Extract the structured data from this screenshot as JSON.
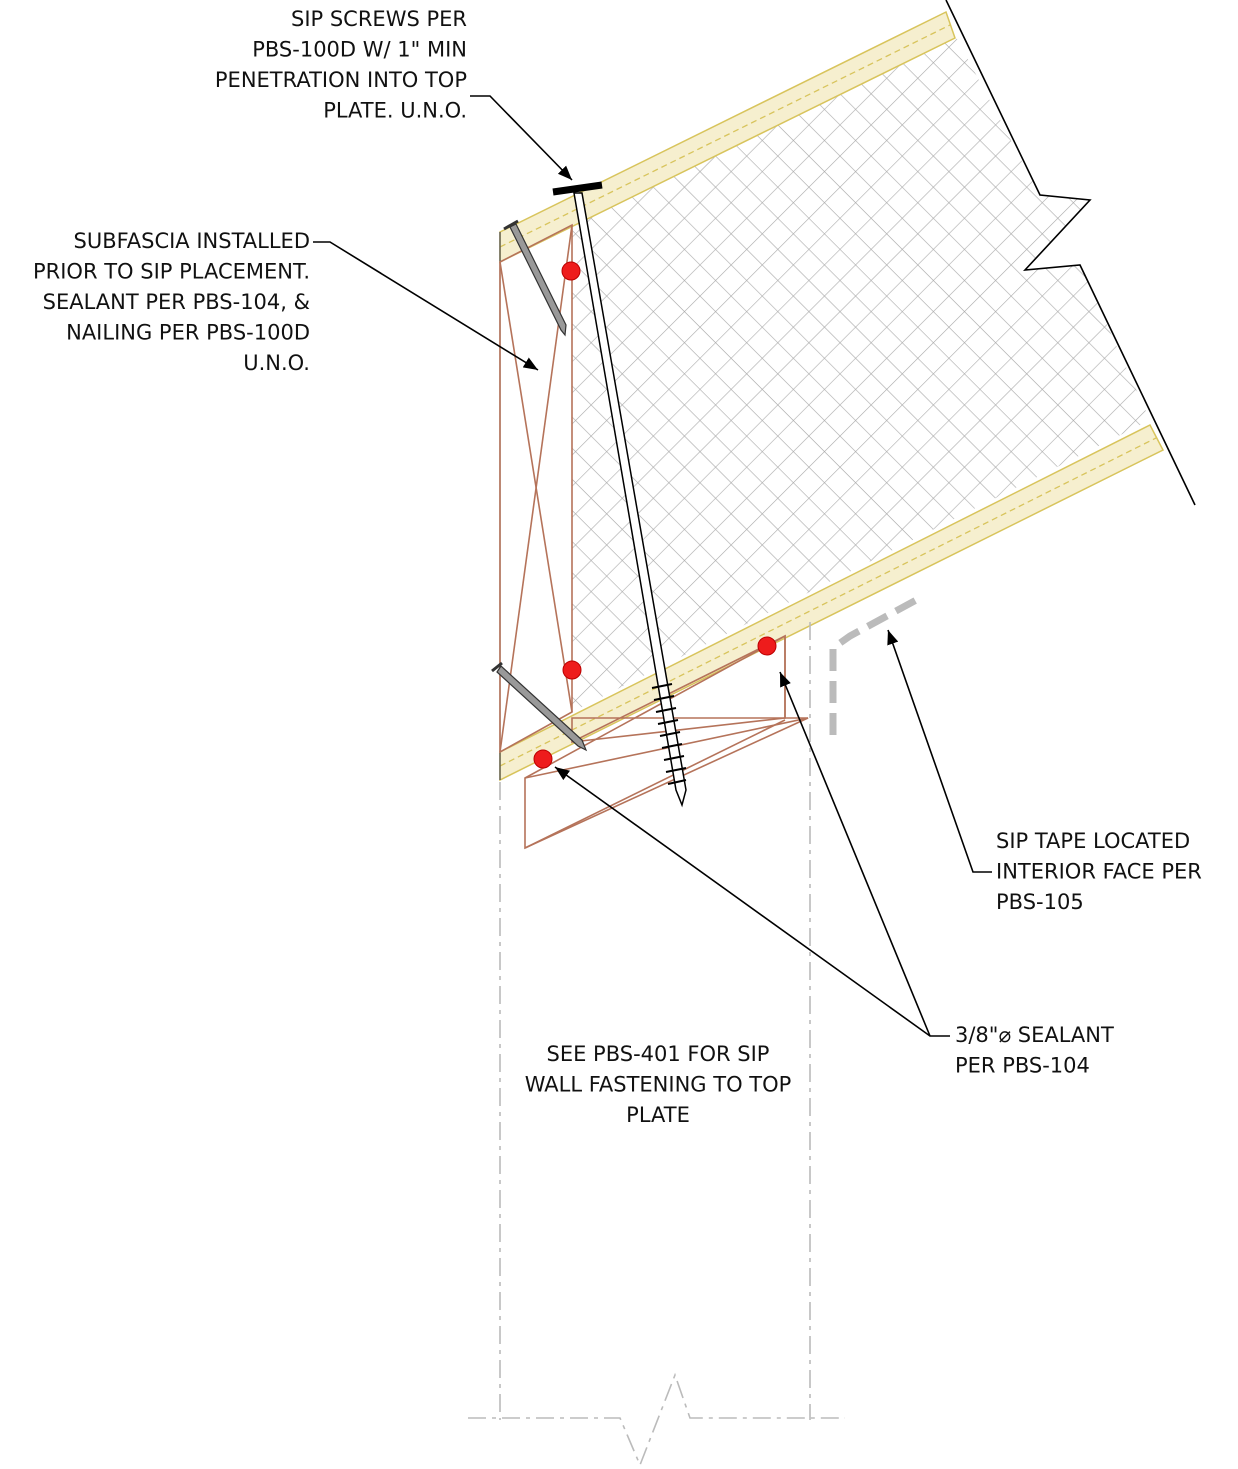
{
  "labels": [
    {
      "lines": [
        "SIP SCREWS PER",
        "PBS-100D W/ 1\" MIN",
        "PENETRATION INTO TOP",
        "PLATE.  U.N.O."
      ]
    },
    {
      "lines": [
        "SUBFASCIA INSTALLED",
        "PRIOR TO SIP PLACEMENT.",
        "SEALANT PER PBS-104, &",
        "NAILING PER PBS-100D",
        "U.N.O."
      ]
    },
    {
      "lines": [
        "SIP TAPE LOCATED",
        "INTERIOR FACE PER",
        "PBS-105"
      ]
    },
    {
      "lines": [
        "3/8\"⌀ SEALANT",
        "PER PBS-104"
      ]
    },
    {
      "lines": [
        "SEE PBS-401 FOR SIP",
        "WALL FASTENING TO TOP",
        "PLATE"
      ]
    }
  ]
}
